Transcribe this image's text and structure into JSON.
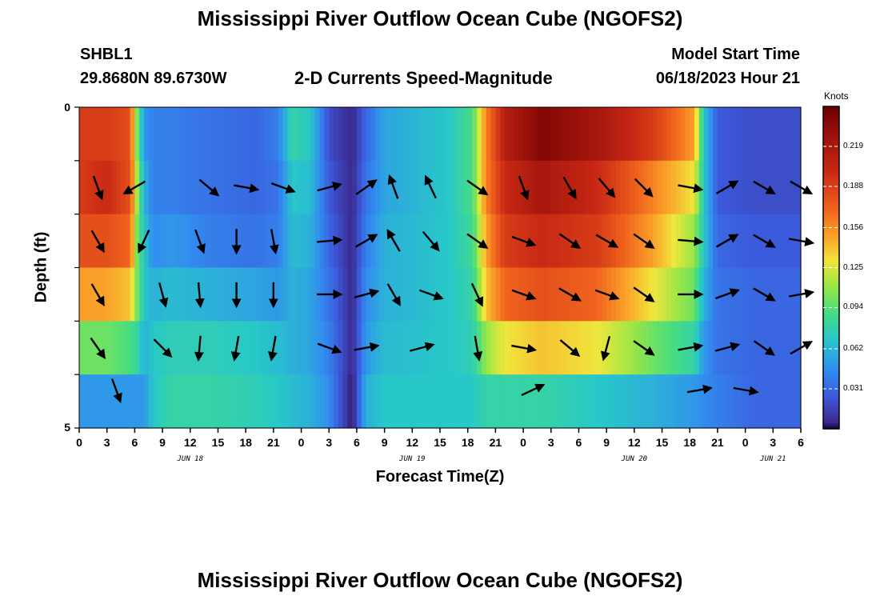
{
  "page": {
    "title": "Mississippi River Outflow Ocean Cube (NGOFS2)",
    "station_name": "SHBL1",
    "station_coords": "29.8680N  89.6730W",
    "subtitle": "2-D Currents Speed-Magnitude",
    "model_start_label": "Model Start Time",
    "model_start_value": "06/18/2023 Hour 21",
    "footer_title": "Mississippi River Outflow Ocean Cube (NGOFS2)"
  },
  "chart_data": {
    "type": "heatmap",
    "title": "2-D Currents Speed-Magnitude",
    "xlabel": "Forecast Time(Z)",
    "ylabel": "Depth (ft)",
    "x_hours_range": [
      0,
      78
    ],
    "x_tick_hours": [
      0,
      3,
      6,
      9,
      12,
      15,
      18,
      21,
      24,
      27,
      30,
      33,
      36,
      39,
      42,
      45,
      48,
      51,
      54,
      57,
      60,
      63,
      66,
      69,
      72,
      75,
      78
    ],
    "x_tick_labels": [
      "0",
      "3",
      "6",
      "9",
      "12",
      "15",
      "18",
      "21",
      "0",
      "3",
      "6",
      "9",
      "12",
      "15",
      "18",
      "21",
      "0",
      "3",
      "6",
      "9",
      "12",
      "15",
      "18",
      "21",
      "0",
      "3",
      "6"
    ],
    "date_labels": [
      {
        "label": "JUN 18",
        "hour": 12
      },
      {
        "label": "JUN 19",
        "hour": 36
      },
      {
        "label": "JUN 20",
        "hour": 60
      },
      {
        "label": "JUN 21",
        "hour": 75
      }
    ],
    "ylim": [
      0,
      5
    ],
    "y_tick_labels": [
      "0",
      "5"
    ],
    "colorbar": {
      "units": "Knots",
      "range": [
        0.0,
        0.25
      ],
      "tick_values": [
        0.031,
        0.062,
        0.094,
        0.125,
        0.156,
        0.188,
        0.219
      ],
      "tick_labels": [
        "0.031",
        "0.062",
        "0.094",
        "0.125",
        "0.156",
        "0.188",
        "0.219"
      ]
    },
    "depth_rows": [
      0,
      1,
      2,
      3,
      4,
      5
    ],
    "speed_profile": [
      {
        "hour": 0,
        "depths": [
          0.19,
          0.19,
          0.18,
          0.15,
          0.1,
          0.05
        ]
      },
      {
        "hour": 3,
        "depths": [
          0.19,
          0.2,
          0.18,
          0.15,
          0.1,
          0.05
        ]
      },
      {
        "hour": 5.5,
        "depths": [
          0.18,
          0.18,
          0.17,
          0.14,
          0.09,
          0.05
        ]
      },
      {
        "hour": 6.3,
        "depths": [
          0.1,
          0.11,
          0.1,
          0.1,
          0.08,
          0.05
        ]
      },
      {
        "hour": 7,
        "depths": [
          0.05,
          0.06,
          0.07,
          0.07,
          0.06,
          0.05
        ]
      },
      {
        "hour": 8,
        "depths": [
          0.04,
          0.04,
          0.045,
          0.06,
          0.07,
          0.07
        ]
      },
      {
        "hour": 10,
        "depths": [
          0.04,
          0.04,
          0.05,
          0.065,
          0.075,
          0.08
        ]
      },
      {
        "hour": 14,
        "depths": [
          0.035,
          0.035,
          0.04,
          0.06,
          0.075,
          0.08
        ]
      },
      {
        "hour": 19,
        "depths": [
          0.03,
          0.03,
          0.035,
          0.055,
          0.07,
          0.075
        ]
      },
      {
        "hour": 21.5,
        "depths": [
          0.04,
          0.035,
          0.04,
          0.05,
          0.065,
          0.07
        ]
      },
      {
        "hour": 23,
        "depths": [
          0.08,
          0.07,
          0.065,
          0.06,
          0.06,
          0.065
        ]
      },
      {
        "hour": 25,
        "depths": [
          0.07,
          0.065,
          0.06,
          0.055,
          0.055,
          0.06
        ]
      },
      {
        "hour": 27,
        "depths": [
          0.02,
          0.025,
          0.03,
          0.035,
          0.04,
          0.045
        ]
      },
      {
        "hour": 29.5,
        "depths": [
          0.005,
          0.005,
          0.005,
          0.005,
          0.005,
          0.0
        ]
      },
      {
        "hour": 31,
        "depths": [
          0.03,
          0.035,
          0.04,
          0.045,
          0.05,
          0.06
        ]
      },
      {
        "hour": 33,
        "depths": [
          0.055,
          0.055,
          0.06,
          0.06,
          0.065,
          0.07
        ]
      },
      {
        "hour": 40,
        "depths": [
          0.07,
          0.07,
          0.07,
          0.07,
          0.07,
          0.07
        ]
      },
      {
        "hour": 42.5,
        "depths": [
          0.09,
          0.09,
          0.085,
          0.08,
          0.075,
          0.07
        ]
      },
      {
        "hour": 44,
        "depths": [
          0.16,
          0.16,
          0.15,
          0.14,
          0.11,
          0.08
        ]
      },
      {
        "hour": 46,
        "depths": [
          0.21,
          0.2,
          0.19,
          0.17,
          0.13,
          0.08
        ]
      },
      {
        "hour": 50,
        "depths": [
          0.24,
          0.22,
          0.2,
          0.18,
          0.14,
          0.08
        ]
      },
      {
        "hour": 56,
        "depths": [
          0.22,
          0.2,
          0.19,
          0.17,
          0.13,
          0.07
        ]
      },
      {
        "hour": 62,
        "depths": [
          0.19,
          0.16,
          0.15,
          0.13,
          0.1,
          0.06
        ]
      },
      {
        "hour": 66.5,
        "depths": [
          0.15,
          0.13,
          0.11,
          0.1,
          0.08,
          0.05
        ]
      },
      {
        "hour": 67.5,
        "depths": [
          0.07,
          0.07,
          0.07,
          0.06,
          0.05,
          0.045
        ]
      },
      {
        "hour": 69,
        "depths": [
          0.025,
          0.025,
          0.03,
          0.035,
          0.035,
          0.04
        ]
      },
      {
        "hour": 73,
        "depths": [
          0.02,
          0.02,
          0.025,
          0.03,
          0.03,
          0.03
        ]
      },
      {
        "hour": 78,
        "depths": [
          0.02,
          0.02,
          0.025,
          0.03,
          0.03,
          0.03
        ]
      }
    ],
    "vectors": [
      {
        "hour": 2,
        "depth": 1,
        "dir": 160
      },
      {
        "hour": 6,
        "depth": 1,
        "dir": 240
      },
      {
        "hour": 14,
        "depth": 1,
        "dir": 130
      },
      {
        "hour": 18,
        "depth": 1,
        "dir": 100
      },
      {
        "hour": 22,
        "depth": 1,
        "dir": 110
      },
      {
        "hour": 27,
        "depth": 1,
        "dir": 75
      },
      {
        "hour": 31,
        "depth": 1,
        "dir": 55
      },
      {
        "hour": 34,
        "depth": 1,
        "dir": 340
      },
      {
        "hour": 38,
        "depth": 1,
        "dir": 335
      },
      {
        "hour": 43,
        "depth": 1,
        "dir": 125
      },
      {
        "hour": 48,
        "depth": 1,
        "dir": 160
      },
      {
        "hour": 53,
        "depth": 1,
        "dir": 150
      },
      {
        "hour": 57,
        "depth": 1,
        "dir": 140
      },
      {
        "hour": 61,
        "depth": 1,
        "dir": 135
      },
      {
        "hour": 66,
        "depth": 1,
        "dir": 100
      },
      {
        "hour": 70,
        "depth": 1,
        "dir": 60
      },
      {
        "hour": 74,
        "depth": 1,
        "dir": 120
      },
      {
        "hour": 78,
        "depth": 1,
        "dir": 120
      },
      {
        "hour": 2,
        "depth": 2,
        "dir": 150
      },
      {
        "hour": 7,
        "depth": 2,
        "dir": 205
      },
      {
        "hour": 13,
        "depth": 2,
        "dir": 160
      },
      {
        "hour": 17,
        "depth": 2,
        "dir": 180
      },
      {
        "hour": 21,
        "depth": 2,
        "dir": 170
      },
      {
        "hour": 27,
        "depth": 2,
        "dir": 85
      },
      {
        "hour": 31,
        "depth": 2,
        "dir": 60
      },
      {
        "hour": 34,
        "depth": 2,
        "dir": 330
      },
      {
        "hour": 38,
        "depth": 2,
        "dir": 140
      },
      {
        "hour": 43,
        "depth": 2,
        "dir": 125
      },
      {
        "hour": 48,
        "depth": 2,
        "dir": 110
      },
      {
        "hour": 53,
        "depth": 2,
        "dir": 125
      },
      {
        "hour": 57,
        "depth": 2,
        "dir": 120
      },
      {
        "hour": 61,
        "depth": 2,
        "dir": 125
      },
      {
        "hour": 66,
        "depth": 2,
        "dir": 95
      },
      {
        "hour": 70,
        "depth": 2,
        "dir": 60
      },
      {
        "hour": 74,
        "depth": 2,
        "dir": 120
      },
      {
        "hour": 78,
        "depth": 2,
        "dir": 100
      },
      {
        "hour": 2,
        "depth": 3,
        "dir": 150
      },
      {
        "hour": 9,
        "depth": 3,
        "dir": 165
      },
      {
        "hour": 13,
        "depth": 3,
        "dir": 175
      },
      {
        "hour": 17,
        "depth": 3,
        "dir": 180
      },
      {
        "hour": 21,
        "depth": 3,
        "dir": 180
      },
      {
        "hour": 27,
        "depth": 3,
        "dir": 90
      },
      {
        "hour": 31,
        "depth": 3,
        "dir": 75
      },
      {
        "hour": 34,
        "depth": 3,
        "dir": 150
      },
      {
        "hour": 38,
        "depth": 3,
        "dir": 110
      },
      {
        "hour": 43,
        "depth": 3,
        "dir": 155
      },
      {
        "hour": 48,
        "depth": 3,
        "dir": 110
      },
      {
        "hour": 53,
        "depth": 3,
        "dir": 120
      },
      {
        "hour": 57,
        "depth": 3,
        "dir": 110
      },
      {
        "hour": 61,
        "depth": 3,
        "dir": 125
      },
      {
        "hour": 66,
        "depth": 3,
        "dir": 90
      },
      {
        "hour": 70,
        "depth": 3,
        "dir": 70
      },
      {
        "hour": 74,
        "depth": 3,
        "dir": 120
      },
      {
        "hour": 78,
        "depth": 3,
        "dir": 80
      },
      {
        "hour": 2,
        "depth": 4,
        "dir": 145
      },
      {
        "hour": 9,
        "depth": 4,
        "dir": 135
      },
      {
        "hour": 13,
        "depth": 4,
        "dir": 185
      },
      {
        "hour": 17,
        "depth": 4,
        "dir": 190
      },
      {
        "hour": 21,
        "depth": 4,
        "dir": 190
      },
      {
        "hour": 27,
        "depth": 4,
        "dir": 110
      },
      {
        "hour": 31,
        "depth": 4,
        "dir": 80
      },
      {
        "hour": 37,
        "depth": 4,
        "dir": 75
      },
      {
        "hour": 43,
        "depth": 4,
        "dir": 170
      },
      {
        "hour": 48,
        "depth": 4,
        "dir": 100
      },
      {
        "hour": 53,
        "depth": 4,
        "dir": 130
      },
      {
        "hour": 57,
        "depth": 4,
        "dir": 195
      },
      {
        "hour": 61,
        "depth": 4,
        "dir": 125
      },
      {
        "hour": 66,
        "depth": 4,
        "dir": 80
      },
      {
        "hour": 70,
        "depth": 4,
        "dir": 75
      },
      {
        "hour": 74,
        "depth": 4,
        "dir": 125
      },
      {
        "hour": 78,
        "depth": 4,
        "dir": 60
      },
      {
        "hour": 4,
        "depth": 5,
        "dir": 160
      },
      {
        "hour": 49,
        "depth": 5,
        "dir": 65
      },
      {
        "hour": 67,
        "depth": 5,
        "dir": 80
      },
      {
        "hour": 72,
        "depth": 5,
        "dir": 100
      }
    ]
  }
}
